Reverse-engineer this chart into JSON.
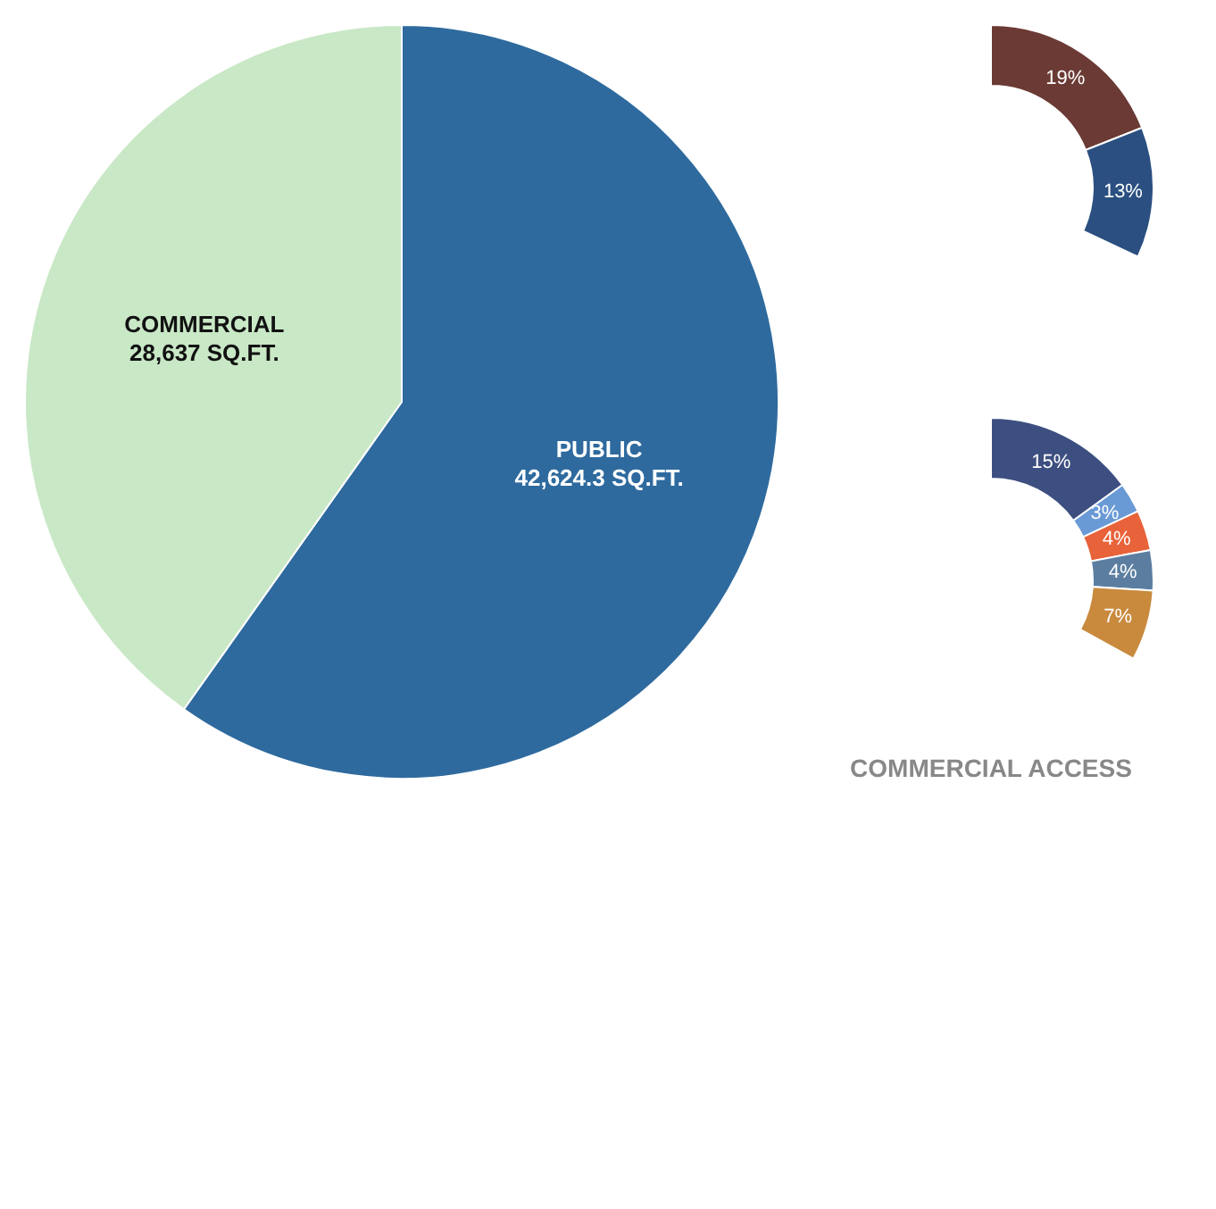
{
  "chart_data": [
    {
      "type": "pie",
      "categories": [
        "PUBLIC",
        "COMMERCIAL"
      ],
      "values": [
        42624.3,
        28637
      ],
      "colors": [
        "#2e6a9e",
        "#c9e8c6"
      ],
      "value_labels": [
        "42,624.3 SQ.FT.",
        "28,637 SQ.FT."
      ]
    },
    {
      "type": "donut",
      "categories": [
        null,
        null
      ],
      "values": [
        19,
        13
      ],
      "colors": [
        "#6b3a34",
        "#2a4f80"
      ],
      "value_labels": [
        "19%",
        "13%"
      ]
    },
    {
      "type": "donut",
      "title": "COMMERCIAL ACCESS",
      "categories": [
        null,
        null,
        null,
        null,
        null
      ],
      "values": [
        15,
        3,
        4,
        4,
        7
      ],
      "colors": [
        "#3d4f80",
        "#6a9ad6",
        "#e8623a",
        "#5b7ea0",
        "#c98a3e"
      ],
      "value_labels": [
        "15%",
        "3%",
        "4%",
        "4%",
        "7%"
      ]
    }
  ]
}
